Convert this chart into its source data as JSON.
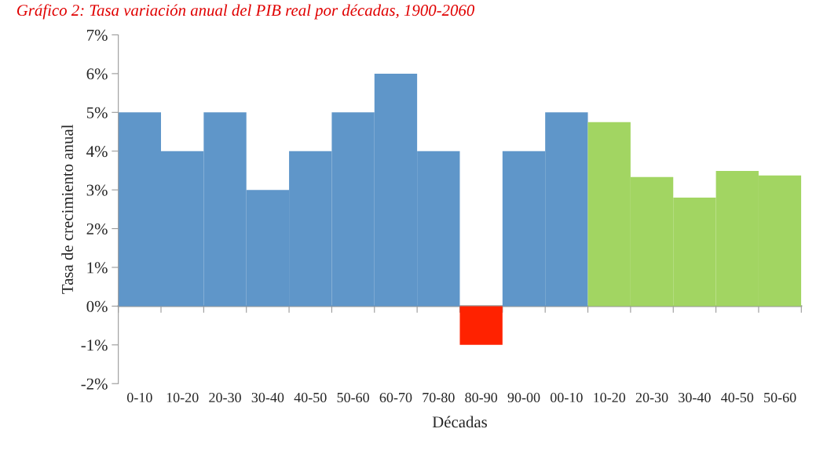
{
  "chart_data": {
    "type": "bar",
    "title": "Gráfico 2: Tasa variación anual del PIB real por décadas, 1900-2060",
    "xlabel": "Décadas",
    "ylabel": "Tasa de crecimiento anual",
    "categories": [
      "0-10",
      "10-20",
      "20-30",
      "30-40",
      "40-50",
      "50-60",
      "60-70",
      "70-80",
      "80-90",
      "90-00",
      "00-10",
      "10-20",
      "20-30",
      "30-40",
      "40-50",
      "50-60"
    ],
    "values": [
      5,
      4,
      5,
      3,
      4,
      5,
      6,
      4,
      -1,
      4,
      5,
      4.75,
      3.33,
      2.8,
      3.49,
      3.37
    ],
    "colors": [
      "#5f96c9",
      "#5f96c9",
      "#5f96c9",
      "#5f96c9",
      "#5f96c9",
      "#5f96c9",
      "#5f96c9",
      "#5f96c9",
      "#ff2200",
      "#5f96c9",
      "#5f96c9",
      "#a2d562",
      "#a2d562",
      "#a2d562",
      "#a2d562",
      "#a2d562"
    ],
    "ylim": [
      -2,
      7
    ],
    "yticks": [
      {
        "value": -2,
        "label": "-2%"
      },
      {
        "value": -1,
        "label": "-1%"
      },
      {
        "value": 0,
        "label": "0%"
      },
      {
        "value": 1,
        "label": "1%"
      },
      {
        "value": 2,
        "label": "2%"
      },
      {
        "value": 3,
        "label": "3%"
      },
      {
        "value": 4,
        "label": "4%"
      },
      {
        "value": 5,
        "label": "5%"
      },
      {
        "value": 6,
        "label": "6%"
      },
      {
        "value": 7,
        "label": "7%"
      }
    ],
    "legend": false
  }
}
